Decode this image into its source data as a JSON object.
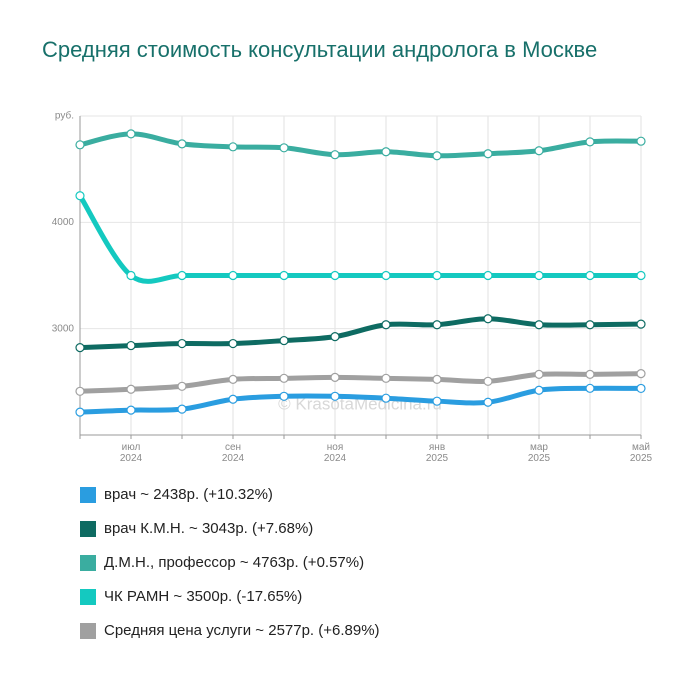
{
  "chart_data": {
    "type": "line",
    "title": "Средняя стоимость консультации андролога в Москве",
    "annotation": "© KrasotaMedicina.ru",
    "categories": [
      null,
      "июл 2024",
      null,
      "сен 2024",
      null,
      "ноя 2024",
      null,
      "янв 2025",
      null,
      "мар 2025",
      null,
      "май 2025"
    ],
    "ylim": [
      2000,
      5000
    ],
    "yticks": [
      3000,
      4000,
      {
        "value": 5000,
        "label": "руб."
      }
    ],
    "grid": true,
    "series": [
      {
        "name": "врач ~ 2438р. (+10.32%)",
        "color": "#2a9de0",
        "values": [
          2215,
          2234,
          2243,
          2336,
          2364,
          2364,
          2346,
          2318,
          2308,
          2421,
          2439,
          2438
        ]
      },
      {
        "name": "врач К.М.Н. ~ 3043р. (+7.68%)",
        "color": "#0e6b62",
        "values": [
          2822,
          2841,
          2860,
          2860,
          2888,
          2925,
          3037,
          3037,
          3093,
          3037,
          3037,
          3043
        ]
      },
      {
        "name": "Д.М.Н., профессор ~ 4763р. (+0.57%)",
        "color": "#3aada0",
        "values": [
          4729,
          4832,
          4738,
          4710,
          4701,
          4636,
          4664,
          4626,
          4645,
          4673,
          4757,
          4763
        ]
      },
      {
        "name": "ЧК РАМН ~ 3500р. (-17.65%)",
        "color": "#14c9c0",
        "values": [
          4250,
          3500,
          3500,
          3500,
          3500,
          3500,
          3500,
          3500,
          3500,
          3500,
          3500,
          3500
        ]
      },
      {
        "name": "Средняя цена услуги ~ 2577р. (+6.89%)",
        "color": "#a0a0a0",
        "values": [
          2411,
          2430,
          2458,
          2523,
          2533,
          2542,
          2533,
          2523,
          2505,
          2570,
          2570,
          2577
        ]
      }
    ]
  }
}
